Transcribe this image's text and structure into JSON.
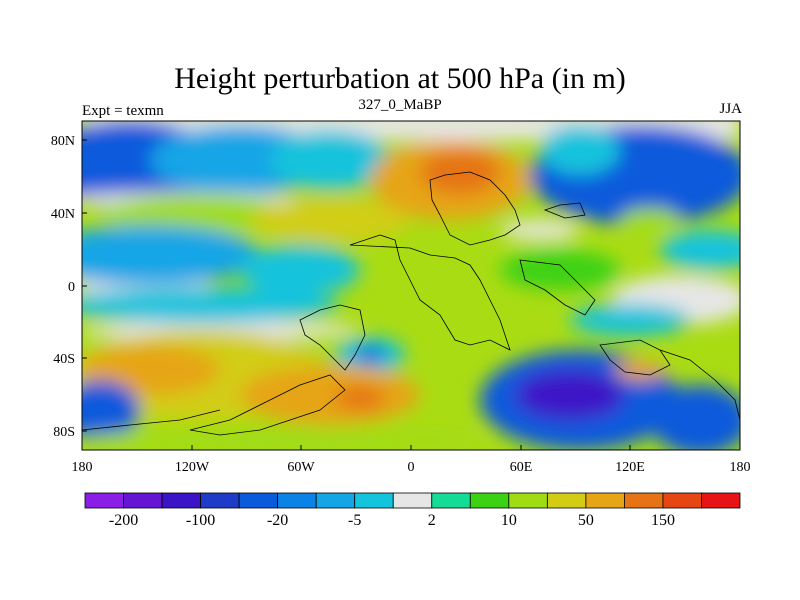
{
  "title": "Height perturbation at 500 hPa (in m)",
  "left_label": "Expt = texmn",
  "center_label": "327_0_MaBP",
  "right_label": "JJA",
  "chart_data": {
    "type": "heatmap",
    "description": "",
    "x_ticks": [
      "180",
      "120W",
      "60W",
      "0",
      "60E",
      "120E",
      "180"
    ],
    "x_values": [
      -180,
      -120,
      -60,
      0,
      60,
      120,
      180
    ],
    "y_ticks": [
      "80N",
      "40N",
      "0",
      "40S",
      "80S"
    ],
    "y_values": [
      80,
      40,
      0,
      -40,
      -80
    ],
    "xlim": [
      -180,
      180
    ],
    "ylim": [
      -90,
      90
    ],
    "colorbar": {
      "colors": [
        "#8a1ee6",
        "#6414d2",
        "#3c14c8",
        "#1e3cc8",
        "#0a5adc",
        "#0a82e6",
        "#14a5e6",
        "#14c3dc",
        "#e6e6e6",
        "#14dc96",
        "#3cd214",
        "#a0dc14",
        "#d2cd14",
        "#e6a514",
        "#e67314",
        "#e64614",
        "#e61414"
      ],
      "labels": [
        "-200",
        "-100",
        "-20",
        "-5",
        "2",
        "10",
        "50",
        "150"
      ]
    }
  }
}
